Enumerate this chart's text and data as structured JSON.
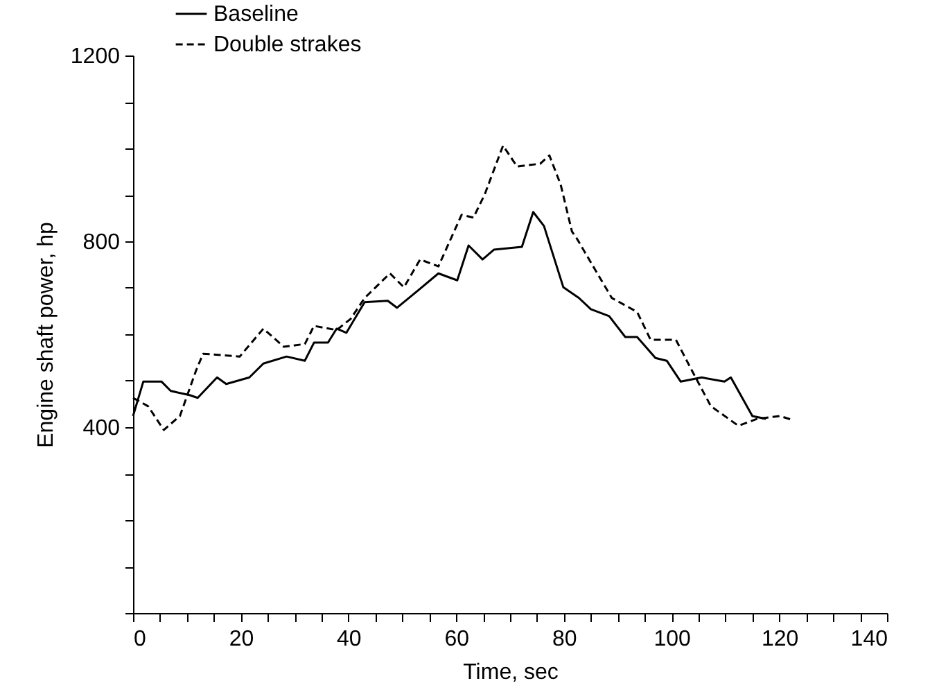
{
  "chart_data": {
    "type": "line",
    "xlabel": "Time, sec",
    "ylabel": "Engine shaft power, hp",
    "xlim": [
      0,
      140
    ],
    "ylim": [
      0,
      1200
    ],
    "xticks": [
      0,
      {
        "value": 5,
        "label": null
      },
      {
        "value": 10,
        "label": null
      },
      {
        "value": 15,
        "label": null
      },
      20,
      {
        "value": 25,
        "label": null
      },
      {
        "value": 30,
        "label": null
      },
      {
        "value": 35,
        "label": null
      },
      40,
      {
        "value": 45,
        "label": null
      },
      {
        "value": 50,
        "label": null
      },
      {
        "value": 55,
        "label": null
      },
      60,
      {
        "value": 65,
        "label": null
      },
      {
        "value": 70,
        "label": null
      },
      {
        "value": 75,
        "label": null
      },
      80,
      {
        "value": 85,
        "label": null
      },
      {
        "value": 90,
        "label": null
      },
      {
        "value": 95,
        "label": null
      },
      100,
      {
        "value": 105,
        "label": null
      },
      {
        "value": 110,
        "label": null
      },
      {
        "value": 115,
        "label": null
      },
      120,
      {
        "value": 125,
        "label": null
      },
      {
        "value": 130,
        "label": null
      },
      {
        "value": 135,
        "label": null
      },
      140
    ],
    "yticks": [
      {
        "value": 0,
        "label": null
      },
      {
        "value": 100,
        "label": null
      },
      {
        "value": 200,
        "label": null
      },
      {
        "value": 300,
        "label": null
      },
      400,
      {
        "value": 500,
        "label": null
      },
      {
        "value": 600,
        "label": null
      },
      {
        "value": 700,
        "label": null
      },
      800,
      {
        "value": 900,
        "label": null
      },
      {
        "value": 1000,
        "label": null
      },
      {
        "value": 1100,
        "label": null
      },
      1200
    ],
    "grid": false,
    "legend": "top left",
    "marker": "none",
    "series": [
      {
        "name": "Baseline",
        "color": "#000000",
        "line_style": "solid",
        "x": [
          0,
          1.9,
          5.3,
          7,
          10.5,
          12,
          15.6,
          17.3,
          21.6,
          24.2,
          28.5,
          31.9,
          33.6,
          36.2,
          37.8,
          39.6,
          43,
          47.3,
          49,
          53.3,
          56.7,
          60.2,
          62.3,
          64.9,
          67,
          72.2,
          74.3,
          76.3,
          79.9,
          82.8,
          85,
          88.4,
          91.4,
          93.6,
          97,
          99.1,
          101.7,
          105.6,
          109.8,
          111,
          115,
          117.5
        ],
        "values": [
          424,
          498,
          498,
          478,
          469,
          463,
          507,
          493,
          507,
          537,
          552,
          543,
          582,
          582,
          612,
          603,
          669,
          672,
          657,
          698,
          731,
          716,
          791,
          761,
          782,
          788,
          863,
          833,
          701,
          678,
          654,
          639,
          594,
          594,
          549,
          543,
          498,
          507,
          498,
          507,
          424,
          418
        ]
      },
      {
        "name": "Double strakes",
        "color": "#000000",
        "line_style": "dashed",
        "x": [
          0,
          2.8,
          5.7,
          8.7,
          11.7,
          13,
          19.8,
          24.2,
          28,
          31.9,
          33.6,
          37.8,
          40.4,
          43,
          47.7,
          50.3,
          53.3,
          56.7,
          61,
          63.2,
          65.3,
          68.7,
          71.3,
          75.6,
          77.3,
          79.4,
          81.5,
          82.4,
          85.9,
          88.9,
          93.6,
          96.1,
          100.8,
          103.9,
          107.3,
          112.4,
          115.9,
          120.1,
          122.6
        ],
        "values": [
          463,
          445,
          394,
          424,
          522,
          558,
          552,
          612,
          573,
          579,
          618,
          609,
          633,
          678,
          731,
          701,
          761,
          746,
          857,
          851,
          901,
          1006,
          961,
          967,
          985,
          922,
          821,
          806,
          737,
          678,
          648,
          588,
          588,
          519,
          445,
          403,
          418,
          424,
          415
        ]
      }
    ]
  }
}
